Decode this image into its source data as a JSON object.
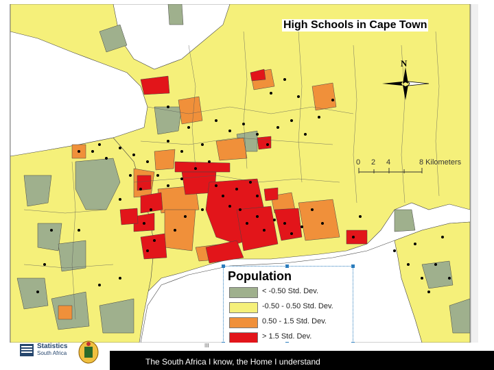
{
  "map": {
    "title": "High Schools in Cape Town",
    "north_label": "N",
    "scale": {
      "ticks": [
        "0",
        "2",
        "4"
      ],
      "end_label": "8 Kilometers"
    },
    "legend": {
      "title": "Population",
      "items": [
        {
          "label": "< -0.50 Std. Dev.",
          "color": "#9fb08d"
        },
        {
          "label": "-0.50 - 0.50 Std. Dev.",
          "color": "#f5f07a"
        },
        {
          "label": "0.50 - 1.5 Std. Dev.",
          "color": "#f0903a"
        },
        {
          "label": "> 1.5 Std. Dev.",
          "color": "#e2151a"
        }
      ]
    },
    "colors": {
      "sea": "#ffffff",
      "low": "#9fb08d",
      "mid": "#f5f07a",
      "high": "#f0903a",
      "very_high": "#e2151a",
      "school_point": "#000000",
      "boundary": "#333333"
    }
  },
  "footer": {
    "tagline": "The South Africa I know, the Home I understand",
    "logo_line1": "Statistics",
    "logo_line2": "South Africa"
  },
  "scroll_mark": "III"
}
